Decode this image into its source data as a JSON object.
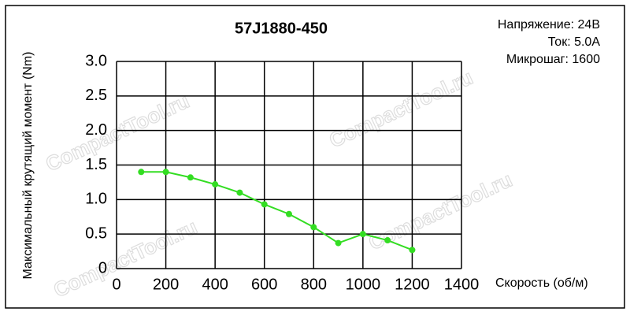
{
  "chart_data": {
    "type": "line",
    "title": "57J1880-450",
    "notes": [
      "Напряжение: 24В",
      "Ток: 5.0А",
      "Микрошаг: 1600"
    ],
    "watermark": "CompactTool.ru",
    "x_label": "Скорость (об/м)",
    "y_label": "Максимальный крутящий момент (Nm)",
    "x": [
      100,
      200,
      300,
      400,
      500,
      600,
      700,
      800,
      900,
      1000,
      1100,
      1200
    ],
    "series": [
      {
        "color": "#33dd22",
        "values": [
          1.4,
          1.4,
          1.32,
          1.22,
          1.1,
          0.93,
          0.79,
          0.6,
          0.37,
          0.5,
          0.41,
          0.27
        ]
      }
    ],
    "xlim": [
      0,
      1400
    ],
    "xticks": [
      0,
      200,
      400,
      600,
      800,
      1000,
      1200,
      1400
    ],
    "ylim": [
      0,
      3
    ],
    "yticks": [
      0,
      0.5,
      {
        "value": 1,
        "label": "1.0"
      },
      1.5,
      {
        "value": 2,
        "label": "2.0"
      },
      2.5,
      {
        "value": 3,
        "label": "3.0"
      }
    ],
    "grid": true
  }
}
